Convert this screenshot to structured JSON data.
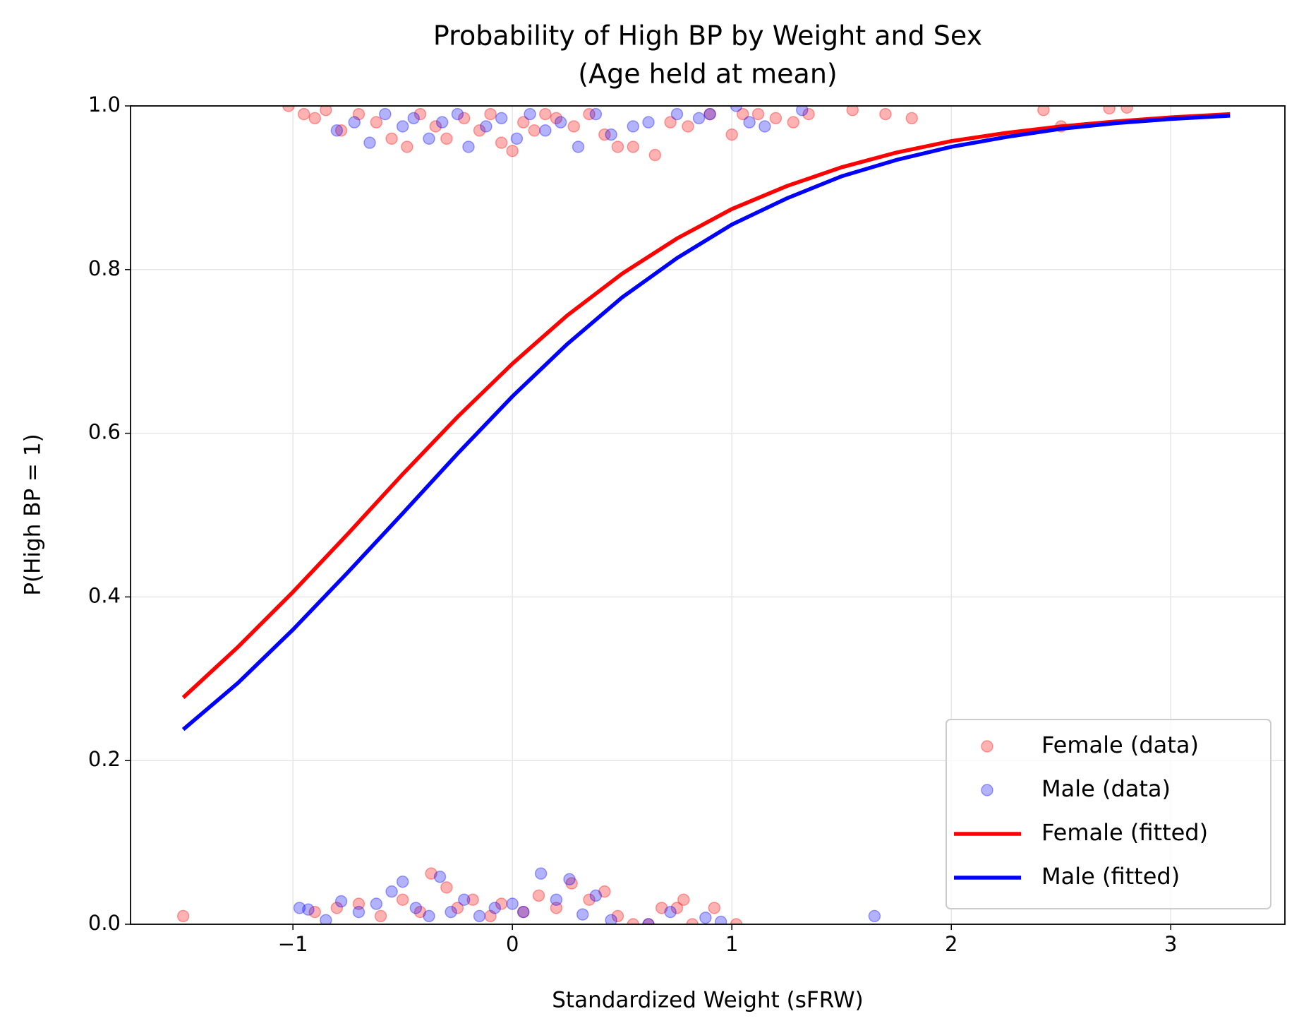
{
  "chart_data": {
    "type": "scatter",
    "title": "Probability of High BP by Weight and Sex",
    "subtitle": "(Age held at mean)",
    "x_label": "Standardized Weight (sFRW)",
    "y_label": "P(High BP = 1)",
    "xlim": [
      -1.74,
      3.52
    ],
    "ylim": [
      0,
      1
    ],
    "xticks": [
      {
        "value": -1,
        "label": "−1"
      },
      0,
      1,
      2,
      3
    ],
    "yticks": [
      {
        "value": 0,
        "label": "0.0"
      },
      0.2,
      0.4,
      0.6,
      0.8,
      {
        "value": 1,
        "label": "1.0"
      }
    ],
    "grid": true,
    "legend": "lower right",
    "series": [
      {
        "name": "Female (data)",
        "type": "scatter",
        "color": "#ff0000",
        "x": [
          -1.02,
          -0.95,
          -0.9,
          -0.85,
          -0.78,
          -0.7,
          -0.62,
          -0.55,
          -0.48,
          -0.42,
          -0.35,
          -0.3,
          -0.22,
          -0.15,
          -0.1,
          -0.05,
          0.0,
          0.05,
          0.1,
          0.15,
          0.2,
          0.28,
          0.35,
          0.42,
          0.48,
          0.55,
          0.65,
          0.72,
          0.8,
          0.9,
          1.0,
          1.05,
          1.12,
          1.2,
          1.28,
          1.35,
          1.55,
          1.7,
          1.82,
          2.42,
          2.5,
          2.72,
          2.8,
          -1.5,
          -0.9,
          -0.8,
          -0.7,
          -0.6,
          -0.5,
          -0.42,
          -0.37,
          -0.3,
          -0.25,
          -0.18,
          -0.1,
          -0.05,
          0.05,
          0.12,
          0.2,
          0.27,
          0.35,
          0.42,
          0.48,
          0.55,
          0.62,
          0.68,
          0.75,
          0.78,
          0.82,
          0.92,
          1.02
        ],
        "values": [
          1.0,
          0.99,
          0.985,
          0.995,
          0.97,
          0.99,
          0.98,
          0.96,
          0.95,
          0.99,
          0.975,
          0.96,
          0.985,
          0.97,
          0.99,
          0.955,
          0.945,
          0.98,
          0.97,
          0.99,
          0.985,
          0.975,
          0.99,
          0.965,
          0.95,
          0.95,
          0.94,
          0.98,
          0.975,
          0.99,
          0.965,
          0.99,
          0.99,
          0.985,
          0.98,
          0.99,
          0.995,
          0.99,
          0.985,
          0.995,
          0.975,
          0.997,
          0.998,
          0.01,
          0.015,
          0.02,
          0.025,
          0.01,
          0.03,
          0.015,
          0.062,
          0.045,
          0.02,
          0.03,
          0.01,
          0.025,
          0.015,
          0.035,
          0.02,
          0.05,
          0.03,
          0.04,
          0.01,
          0.0,
          0.0,
          0.02,
          0.02,
          0.03,
          0.0,
          0.02,
          0.0
        ]
      },
      {
        "name": "Male (data)",
        "type": "scatter",
        "color": "#0000ff",
        "x": [
          -0.8,
          -0.72,
          -0.65,
          -0.58,
          -0.5,
          -0.45,
          -0.38,
          -0.32,
          -0.25,
          -0.2,
          -0.12,
          -0.05,
          0.02,
          0.08,
          0.15,
          0.22,
          0.3,
          0.38,
          0.45,
          0.55,
          0.62,
          0.75,
          0.85,
          0.9,
          1.02,
          1.08,
          1.15,
          1.32,
          -0.97,
          -0.93,
          -0.85,
          -0.78,
          -0.7,
          -0.62,
          -0.55,
          -0.5,
          -0.44,
          -0.38,
          -0.33,
          -0.28,
          -0.22,
          -0.15,
          -0.08,
          0.0,
          0.05,
          0.13,
          0.2,
          0.26,
          0.32,
          0.38,
          0.45,
          0.62,
          0.72,
          0.88,
          0.95,
          1.65
        ],
        "values": [
          0.97,
          0.98,
          0.955,
          0.99,
          0.975,
          0.985,
          0.96,
          0.98,
          0.99,
          0.95,
          0.975,
          0.985,
          0.96,
          0.99,
          0.97,
          0.98,
          0.95,
          0.99,
          0.965,
          0.975,
          0.98,
          0.99,
          0.985,
          0.99,
          1.0,
          0.98,
          0.975,
          0.995,
          0.02,
          0.018,
          0.005,
          0.028,
          0.015,
          0.025,
          0.04,
          0.052,
          0.02,
          0.01,
          0.058,
          0.015,
          0.03,
          0.01,
          0.02,
          0.025,
          0.015,
          0.062,
          0.03,
          0.055,
          0.012,
          0.035,
          0.005,
          0.0,
          0.015,
          0.008,
          0.003,
          0.01
        ]
      },
      {
        "name": "Female (fitted)",
        "type": "line",
        "color": "#ff0000",
        "x": [
          -1.5,
          -1.25,
          -1,
          -0.75,
          -0.5,
          -0.25,
          0,
          0.25,
          0.5,
          0.75,
          1,
          1.25,
          1.5,
          1.75,
          2,
          2.25,
          2.5,
          2.75,
          3,
          3.27
        ],
        "values": [
          0.277,
          0.339,
          0.406,
          0.477,
          0.55,
          0.62,
          0.685,
          0.744,
          0.795,
          0.838,
          0.874,
          0.902,
          0.925,
          0.943,
          0.957,
          0.967,
          0.975,
          0.981,
          0.986,
          0.99
        ]
      },
      {
        "name": "Male (fitted)",
        "type": "line",
        "color": "#0000ff",
        "x": [
          -1.5,
          -1.25,
          -1,
          -0.75,
          -0.5,
          -0.25,
          0,
          0.25,
          0.5,
          0.75,
          1,
          1.25,
          1.5,
          1.75,
          2,
          2.25,
          2.5,
          2.75,
          3,
          3.27
        ],
        "values": [
          0.238,
          0.295,
          0.36,
          0.43,
          0.502,
          0.575,
          0.645,
          0.709,
          0.766,
          0.814,
          0.855,
          0.887,
          0.914,
          0.934,
          0.95,
          0.962,
          0.972,
          0.979,
          0.984,
          0.988
        ]
      }
    ]
  }
}
